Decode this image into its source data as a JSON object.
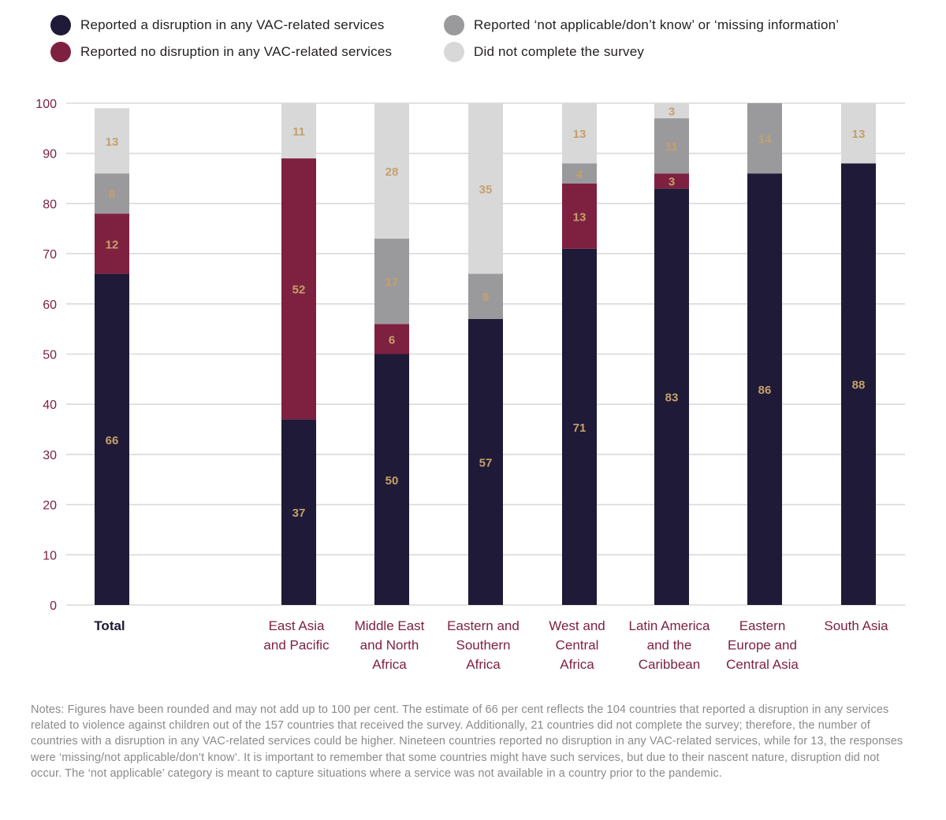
{
  "legend": {
    "items": [
      {
        "label": "Reported a disruption in any VAC-related services",
        "color": "#1e1a37"
      },
      {
        "label": "Reported no disruption in any VAC-related services",
        "color": "#7e2140"
      },
      {
        "label": "Reported ‘not applicable/don’t know’ or ‘missing information’",
        "color": "#9a9a9d"
      },
      {
        "label": "Did not complete the survey",
        "color": "#d8d8d9"
      }
    ]
  },
  "chart_data": {
    "type": "bar",
    "stacked": true,
    "ylim": [
      0,
      100
    ],
    "yticks": [
      0,
      10,
      20,
      30,
      40,
      50,
      60,
      70,
      80,
      90,
      100
    ],
    "grid": true,
    "legend_position": "top",
    "label_color": "#c5a06a",
    "categories": [
      [
        "Total"
      ],
      [
        "East Asia",
        "and Pacific"
      ],
      [
        "Middle East",
        "and North",
        "Africa"
      ],
      [
        "Eastern and",
        "Southern",
        "Africa"
      ],
      [
        "West and",
        "Central",
        "Africa"
      ],
      [
        "Latin America",
        "and the",
        "Caribbean"
      ],
      [
        "Eastern",
        "Europe and",
        "Central Asia"
      ],
      [
        "South Asia"
      ]
    ],
    "series": [
      {
        "name": "Reported a disruption in any VAC-related services",
        "color": "#1e1a37",
        "values": [
          66,
          37,
          50,
          57,
          71,
          83,
          86,
          88
        ]
      },
      {
        "name": "Reported no disruption in any VAC-related services",
        "color": "#7e2140",
        "values": [
          12,
          52,
          6,
          null,
          13,
          3,
          null,
          null
        ]
      },
      {
        "name": "Reported ‘not applicable/don’t know’ or ‘missing information’",
        "color": "#9a9a9d",
        "values": [
          8,
          null,
          17,
          9,
          4,
          11,
          14,
          null
        ]
      },
      {
        "name": "Did not complete the survey",
        "color": "#d8d8d9",
        "values": [
          13,
          11,
          28,
          35,
          13,
          3,
          null,
          13
        ]
      }
    ]
  },
  "notes": "Notes: Figures have been rounded and may not add up to 100 per cent. The estimate of 66 per cent reflects the 104 countries that reported a disruption in any services related to violence against children out of the 157 countries that received the survey. Additionally, 21 countries did not complete the survey; therefore, the number of countries with a disruption in any VAC-related services could be higher. Nineteen countries reported no disruption in any VAC-related services, while for 13, the responses were ‘missing/not applicable/don’t know’. It is important to remember that some countries might have such services, but due to their nascent nature, disruption did not occur. The ‘not applicable’ category is meant to capture situations where a service was not available in a country prior to the pandemic."
}
